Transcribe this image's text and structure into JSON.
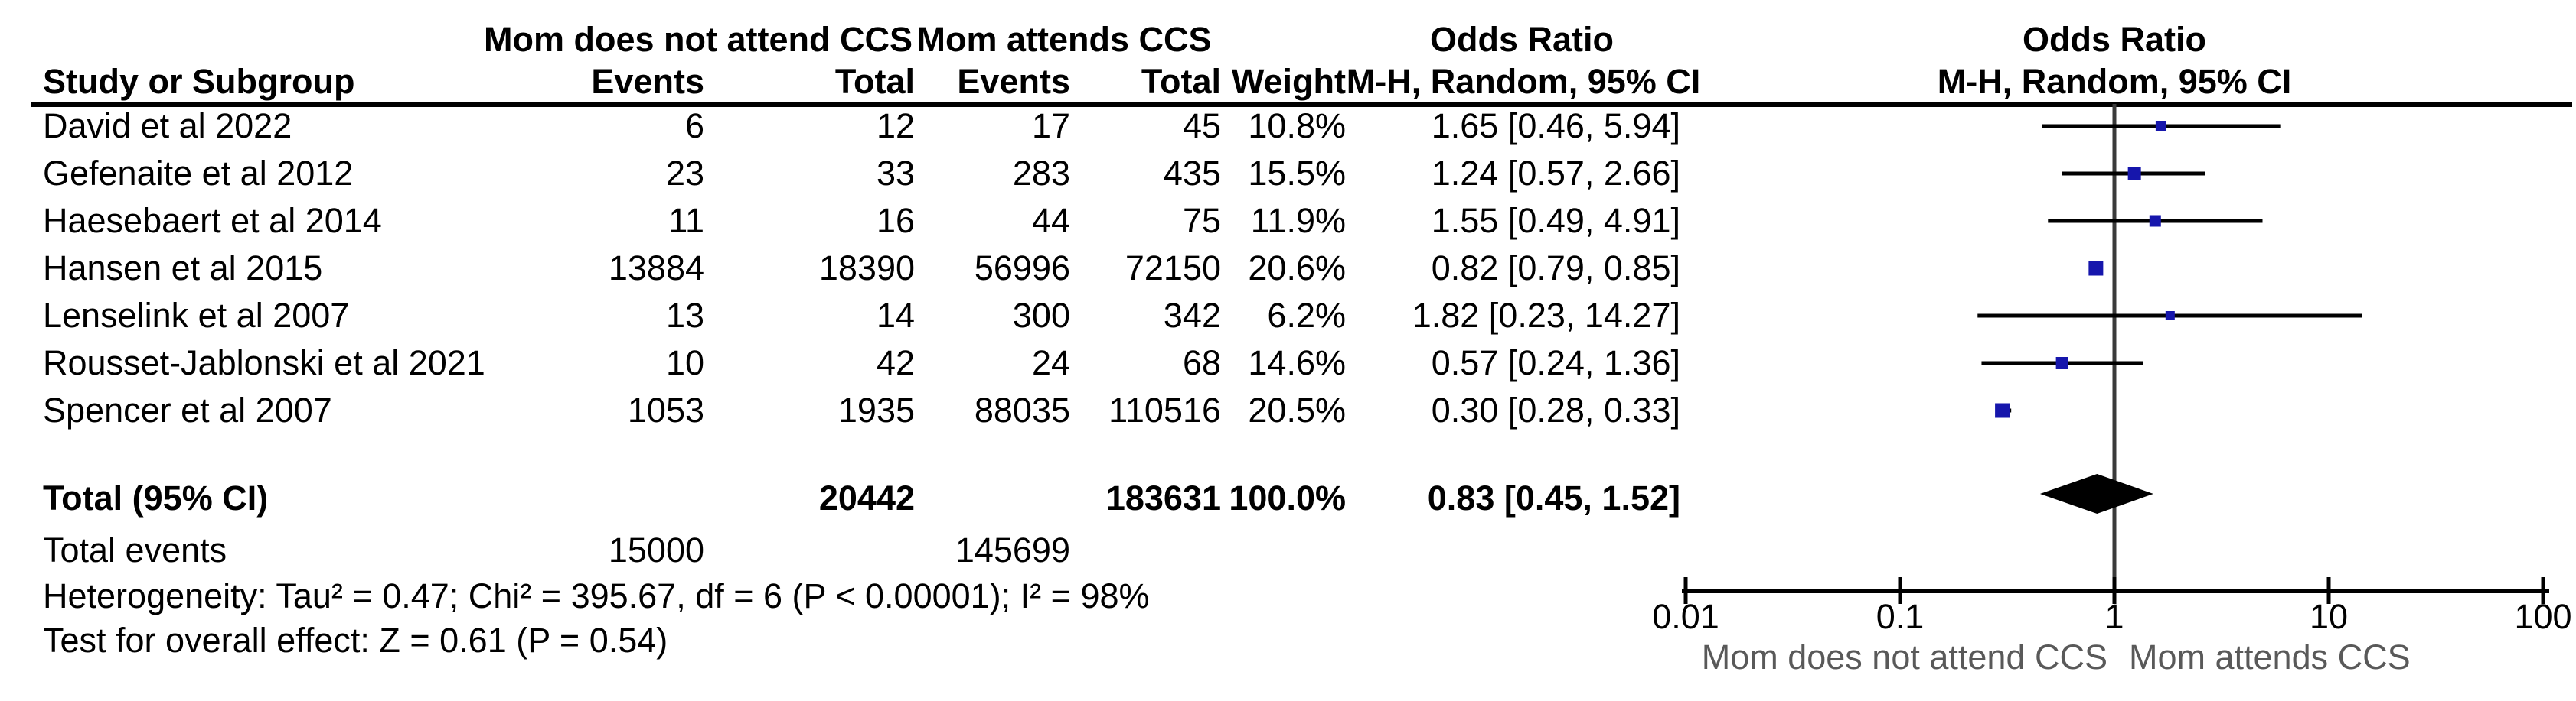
{
  "table": {
    "header": {
      "group1": "Mom does not attend CCS",
      "group2": "Mom attends CCS",
      "or_title": "Odds Ratio",
      "study_col": "Study or Subgroup",
      "events_col": "Events",
      "total_col": "Total",
      "weight_col": "Weight",
      "method_col": "M-H, Random, 95% CI"
    },
    "total_row": {
      "label": "Total (95% CI)",
      "total1": "20442",
      "total2": "183631",
      "weight": "100.0%",
      "or_text": "0.83 [0.45, 1.52]"
    },
    "total_events_row": {
      "label": "Total events",
      "events1": "15000",
      "events2": "145699"
    },
    "heterogeneity": "Heterogeneity: Tau² = 0.47; Chi² = 395.67, df = 6 (P < 0.00001); I² = 98%",
    "overall_effect": "Test for overall effect: Z = 0.61 (P = 0.54)"
  },
  "plot": {
    "title1": "Odds Ratio",
    "title2": "M-H, Random, 95% CI",
    "x_left_label": "Mom does not attend CCS",
    "x_right_label": "Mom attends CCS"
  },
  "chart_data": {
    "type": "forest",
    "effect_measure": "Odds Ratio, M-H, Random, 95% CI",
    "axis": {
      "scale": "log",
      "ticks": [
        0.01,
        0.1,
        1,
        10,
        100
      ],
      "tick_labels": [
        "0.01",
        "0.1",
        "1",
        "10",
        "100"
      ]
    },
    "studies": [
      {
        "name": "David et al 2022",
        "events1": "6",
        "total1": "12",
        "events2": "17",
        "total2": "45",
        "weight_label": "10.8%",
        "weight_pct": 10.8,
        "or": 1.65,
        "ci_low": 0.46,
        "ci_high": 5.94,
        "or_label": "1.65 [0.46, 5.94]"
      },
      {
        "name": "Gefenaite et al 2012",
        "events1": "23",
        "total1": "33",
        "events2": "283",
        "total2": "435",
        "weight_label": "15.5%",
        "weight_pct": 15.5,
        "or": 1.24,
        "ci_low": 0.57,
        "ci_high": 2.66,
        "or_label": "1.24 [0.57, 2.66]"
      },
      {
        "name": "Haesebaert et al 2014",
        "events1": "11",
        "total1": "16",
        "events2": "44",
        "total2": "75",
        "weight_label": "11.9%",
        "weight_pct": 11.9,
        "or": 1.55,
        "ci_low": 0.49,
        "ci_high": 4.91,
        "or_label": "1.55 [0.49, 4.91]"
      },
      {
        "name": "Hansen et al 2015",
        "events1": "13884",
        "total1": "18390",
        "events2": "56996",
        "total2": "72150",
        "weight_label": "20.6%",
        "weight_pct": 20.6,
        "or": 0.82,
        "ci_low": 0.79,
        "ci_high": 0.85,
        "or_label": "0.82 [0.79, 0.85]"
      },
      {
        "name": "Lenselink et al 2007",
        "events1": "13",
        "total1": "14",
        "events2": "300",
        "total2": "342",
        "weight_label": "6.2%",
        "weight_pct": 6.2,
        "or": 1.82,
        "ci_low": 0.23,
        "ci_high": 14.27,
        "or_label": "1.82 [0.23, 14.27]"
      },
      {
        "name": "Rousset-Jablonski et al 2021",
        "events1": "10",
        "total1": "42",
        "events2": "24",
        "total2": "68",
        "weight_label": "14.6%",
        "weight_pct": 14.6,
        "or": 0.57,
        "ci_low": 0.24,
        "ci_high": 1.36,
        "or_label": "0.57 [0.24, 1.36]"
      },
      {
        "name": "Spencer et al 2007",
        "events1": "1053",
        "total1": "1935",
        "events2": "88035",
        "total2": "110516",
        "weight_label": "20.5%",
        "weight_pct": 20.5,
        "or": 0.3,
        "ci_low": 0.28,
        "ci_high": 0.33,
        "or_label": "0.30 [0.28, 0.33]"
      }
    ],
    "total": {
      "label": "Total (95% CI)",
      "total1": "20442",
      "total2": "183631",
      "weight_label": "100.0%",
      "or": 0.83,
      "ci_low": 0.45,
      "ci_high": 1.52,
      "or_label": "0.83 [0.45, 1.52]"
    },
    "footer": {
      "total_events_group1": "15000",
      "total_events_group2": "145699",
      "heterogeneity": "Heterogeneity: Tau² = 0.47; Chi² = 395.67, df = 6 (P < 0.00001); I² = 98%",
      "overall_effect": "Test for overall effect: Z = 0.61 (P = 0.54)"
    }
  },
  "colors": {
    "marker_blue": "#1616ac",
    "ci_line": "#000000",
    "center_line": "#3a3a3a",
    "axis": "#000000",
    "diamond": "#000000",
    "muted_label": "#595959"
  }
}
